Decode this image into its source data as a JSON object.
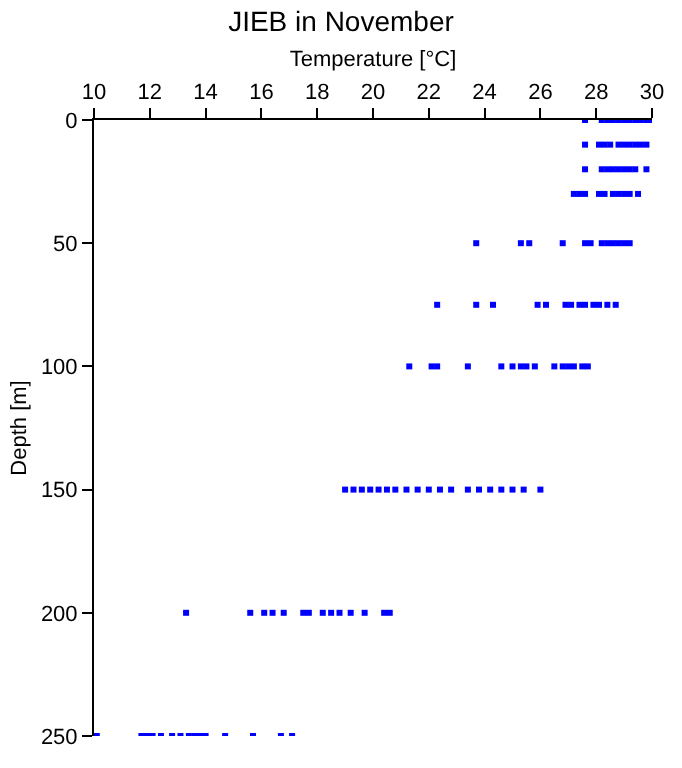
{
  "chart_data": {
    "type": "scatter",
    "title": "JIEB in November",
    "xlabel": "Temperature [°C]",
    "ylabel": "Depth [m]",
    "marker": "square",
    "xlim": [
      10,
      30
    ],
    "xticks": [
      10,
      12,
      14,
      16,
      18,
      20,
      22,
      24,
      26,
      28,
      30
    ],
    "ylim": [
      250,
      0
    ],
    "yticks": [
      0,
      50,
      100,
      150,
      200,
      250
    ],
    "series": [
      {
        "color": "#0000ff",
        "x": [
          27.6,
          28.2,
          28.4,
          28.6,
          28.8,
          29.0,
          29.2,
          29.4,
          29.6,
          29.8,
          29.9,
          27.6,
          28.1,
          28.3,
          28.5,
          28.8,
          29.0,
          29.2,
          29.4,
          29.6,
          29.8,
          27.6,
          28.2,
          28.4,
          28.6,
          28.8,
          29.0,
          29.2,
          29.4,
          29.8,
          27.2,
          27.4,
          27.6,
          28.1,
          28.3,
          28.6,
          28.8,
          29.0,
          29.2,
          29.5,
          23.7,
          25.3,
          25.6,
          26.8,
          27.6,
          27.8,
          28.2,
          28.4,
          28.6,
          28.8,
          29.0,
          29.2,
          22.3,
          23.7,
          24.3,
          25.9,
          26.2,
          26.9,
          27.1,
          27.4,
          27.6,
          27.9,
          28.1,
          28.4,
          28.7,
          21.3,
          22.1,
          22.3,
          23.4,
          24.6,
          25.0,
          25.3,
          25.5,
          25.8,
          26.5,
          26.8,
          27.0,
          27.2,
          27.5,
          27.7,
          19.0,
          19.3,
          19.6,
          19.9,
          20.2,
          20.5,
          20.8,
          21.2,
          21.6,
          22.0,
          22.4,
          22.8,
          23.4,
          23.8,
          24.2,
          24.6,
          25.0,
          25.4,
          26.0,
          13.3,
          15.6,
          16.1,
          16.4,
          16.8,
          17.5,
          17.7,
          18.2,
          18.5,
          18.8,
          19.2,
          19.7,
          20.4,
          20.6,
          10.1,
          11.7,
          11.9,
          12.1,
          12.4,
          12.8,
          13.1,
          13.4,
          13.6,
          13.8,
          14.0,
          14.7,
          15.7,
          16.7,
          17.1
        ],
        "values": [
          0,
          0,
          0,
          0,
          0,
          0,
          0,
          0,
          0,
          0,
          0,
          10,
          10,
          10,
          10,
          10,
          10,
          10,
          10,
          10,
          10,
          20,
          20,
          20,
          20,
          20,
          20,
          20,
          20,
          20,
          30,
          30,
          30,
          30,
          30,
          30,
          30,
          30,
          30,
          30,
          50,
          50,
          50,
          50,
          50,
          50,
          50,
          50,
          50,
          50,
          50,
          50,
          75,
          75,
          75,
          75,
          75,
          75,
          75,
          75,
          75,
          75,
          75,
          75,
          75,
          100,
          100,
          100,
          100,
          100,
          100,
          100,
          100,
          100,
          100,
          100,
          100,
          100,
          100,
          100,
          150,
          150,
          150,
          150,
          150,
          150,
          150,
          150,
          150,
          150,
          150,
          150,
          150,
          150,
          150,
          150,
          150,
          150,
          150,
          200,
          200,
          200,
          200,
          200,
          200,
          200,
          200,
          200,
          200,
          200,
          200,
          200,
          200,
          250,
          250,
          250,
          250,
          250,
          250,
          250,
          250,
          250,
          250,
          250,
          250,
          250,
          250,
          250
        ]
      }
    ]
  }
}
